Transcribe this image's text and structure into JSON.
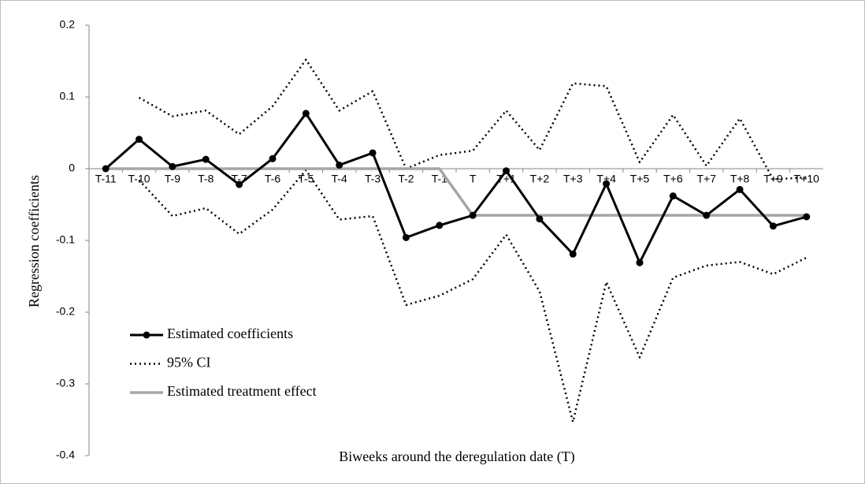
{
  "chart_data": {
    "type": "line",
    "x_label": "Biweeks around the deregulation date (T)",
    "y_label": "Regression coefficients",
    "categories": [
      "T-11",
      "T-10",
      "T-9",
      "T-8",
      "T-7",
      "T-6",
      "T-5",
      "T-4",
      "T-3",
      "T-2",
      "T-1",
      "T",
      "T+1",
      "T+2",
      "T+3",
      "T+4",
      "T+5",
      "T+6",
      "T+7",
      "T+8",
      "T+9",
      "T+10"
    ],
    "ylim": [
      -0.4,
      0.2
    ],
    "yticks": [
      -0.4,
      -0.3,
      -0.2,
      -0.1,
      0,
      0.1,
      0.2
    ],
    "legend": "lower-left",
    "series": [
      {
        "name": "Estimated coefficients",
        "color": "#000000",
        "line_style": "solid",
        "markers": true,
        "values": [
          0,
          0.041,
          0.003,
          0.013,
          -0.022,
          0.014,
          0.077,
          0.005,
          0.022,
          -0.096,
          -0.079,
          -0.065,
          -0.003,
          -0.07,
          -0.119,
          -0.021,
          -0.131,
          -0.038,
          -0.065,
          -0.029,
          -0.08,
          -0.067
        ]
      },
      {
        "name": "95% CI",
        "color": "#000000",
        "line_style": "dotted",
        "markers": false,
        "upper": [
          null,
          0.099,
          0.073,
          0.081,
          0.048,
          0.087,
          0.152,
          0.081,
          0.108,
          0.0,
          0.019,
          0.025,
          0.081,
          0.026,
          0.119,
          0.115,
          0.009,
          0.075,
          0.004,
          0.07,
          -0.015,
          -0.012
        ],
        "lower": [
          null,
          -0.016,
          -0.066,
          -0.055,
          -0.091,
          -0.057,
          -0.002,
          -0.071,
          -0.066,
          -0.19,
          -0.177,
          -0.154,
          -0.092,
          -0.171,
          -0.353,
          -0.158,
          -0.263,
          -0.152,
          -0.135,
          -0.13,
          -0.147,
          -0.124
        ]
      },
      {
        "name": "Estimated treatment effect",
        "color": "#a6a6a6",
        "line_style": "solid",
        "markers": false,
        "values": [
          0,
          0,
          0,
          0,
          0,
          0,
          0,
          0,
          0,
          0,
          0,
          -0.065,
          -0.065,
          -0.065,
          -0.065,
          -0.065,
          -0.065,
          -0.065,
          -0.065,
          -0.065,
          -0.065,
          -0.065
        ]
      }
    ]
  }
}
